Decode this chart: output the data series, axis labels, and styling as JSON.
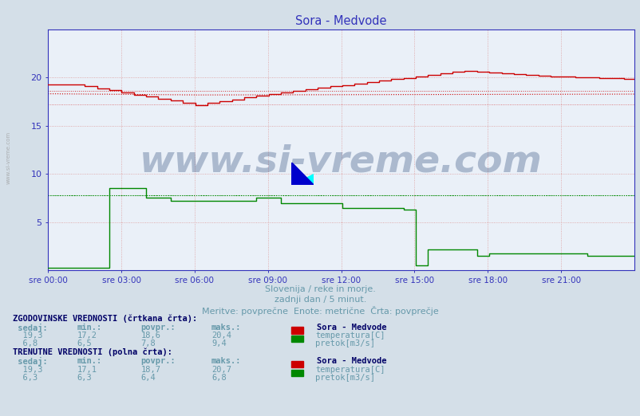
{
  "title": "Sora - Medvode",
  "bg_color": "#d4dfe8",
  "plot_bg_color": "#eaf0f8",
  "title_color": "#3333bb",
  "tick_color": "#3333bb",
  "grid_color": "#dd9999",
  "temp_solid_color": "#cc0000",
  "temp_dashed_color": "#cc0000",
  "flow_solid_color": "#008800",
  "flow_dashed_color": "#008800",
  "text_color": "#6699aa",
  "label_color": "#000066",
  "n_points": 288,
  "ymin": 0,
  "ymax": 25,
  "ytick_positions": [
    5,
    10,
    15,
    20
  ],
  "ytick_labels": [
    "5",
    "10",
    "15",
    "20"
  ],
  "xtick_labels": [
    "sre 00:00",
    "sre 03:00",
    "sre 06:00",
    "sre 09:00",
    "sre 12:00",
    "sre 15:00",
    "sre 18:00",
    "sre 21:00"
  ],
  "footer_line1": "Slovenija / reke in morje.",
  "footer_line2": "zadnji dan / 5 minut.",
  "footer_line3": "Meritve: povprečne  Enote: metrične  Črta: povprečje",
  "watermark_text": "www.si-vreme.com",
  "watermark_color": "#1a3a6e",
  "sidebar_text": "www.si-vreme.com",
  "temp_hist_avg": 18.6,
  "temp_hist_min": 17.2,
  "temp_hist_max": 20.4,
  "flow_hist_avg": 7.8,
  "flow_hist_min": 6.5,
  "flow_hist_max": 9.4,
  "hist_sedaj": "19,3",
  "hist_min_temp": "17,2",
  "hist_povpr_temp": "18,6",
  "hist_maks_temp": "20,4",
  "hist_sedaj_flow": "6,8",
  "hist_min_flow": "6,5",
  "hist_povpr_flow": "7,8",
  "hist_maks_flow": "9,4",
  "curr_sedaj_temp": "19,3",
  "curr_min_temp": "17,1",
  "curr_povpr_temp": "18,7",
  "curr_maks_temp": "20,7",
  "curr_sedaj_flow": "6,3",
  "curr_min_flow": "6,3",
  "curr_povpr_flow": "6,4",
  "curr_maks_flow": "6,8"
}
